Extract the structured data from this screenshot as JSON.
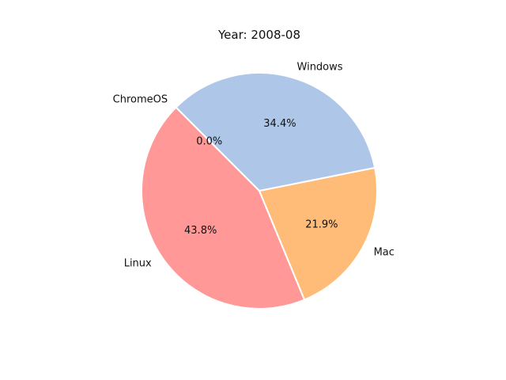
{
  "chart_data": {
    "type": "pie",
    "title": "Year: 2008-08",
    "labels": [
      "Linux",
      "Mac",
      "Windows",
      "ChromeOS"
    ],
    "values": [
      43.8,
      21.9,
      34.4,
      0.0
    ],
    "percent_labels": [
      "43.8%",
      "21.9%",
      "34.4%",
      "0.0%"
    ],
    "colors": [
      "#ff9896",
      "#ffbb78",
      "#aec7e8",
      "#c5b0d5"
    ],
    "start_angle_deg": 135,
    "legend": "none"
  }
}
